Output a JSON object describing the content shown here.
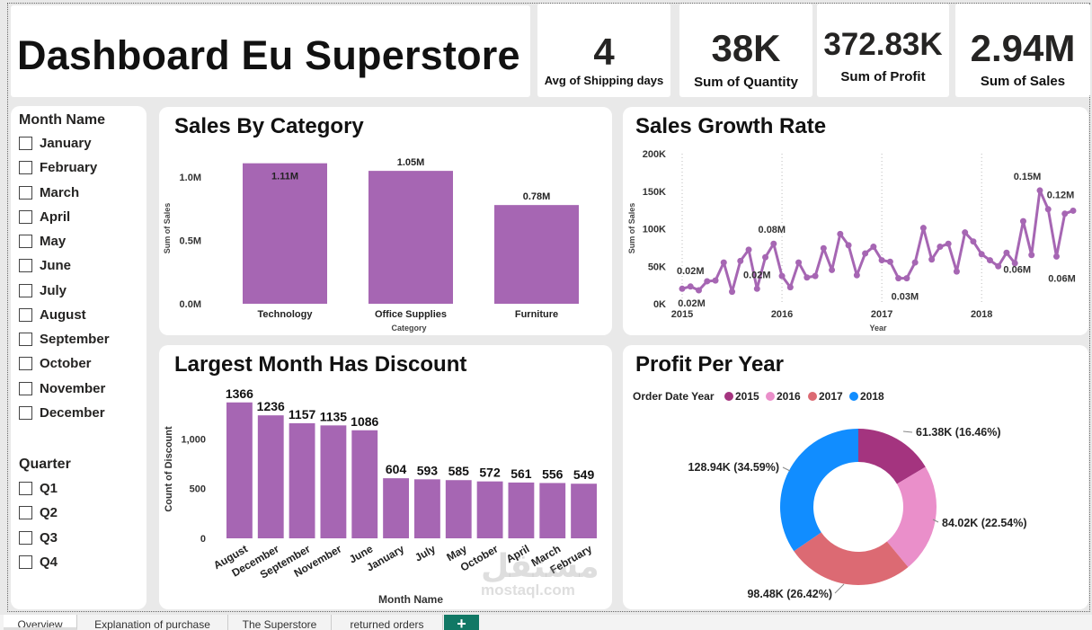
{
  "dashboard": {
    "title": "Dashboard Eu Superstore"
  },
  "kpis": [
    {
      "value": "4",
      "label": "Avg of Shipping days"
    },
    {
      "value": "38K",
      "label": "Sum of Quantity"
    },
    {
      "value": "372.83K",
      "label": "Sum of Profit"
    },
    {
      "value": "2.94M",
      "label": "Sum of Sales"
    }
  ],
  "slicers": {
    "month": {
      "header": "Month Name",
      "items": [
        "January",
        "February",
        "March",
        "April",
        "May",
        "June",
        "July",
        "August",
        "September",
        "October",
        "November",
        "December"
      ]
    },
    "quarter": {
      "header": "Quarter",
      "items": [
        "Q1",
        "Q2",
        "Q3",
        "Q4"
      ]
    }
  },
  "panels": {
    "sales_by_category": "Sales By Category",
    "sales_growth": "Sales Growth Rate",
    "discount_month": "Largest Month Has Discount",
    "profit_year": "Profit Per Year"
  },
  "chart_data": [
    {
      "type": "bar",
      "title": "Sales By Category",
      "xlabel": "Category",
      "ylabel": "Sum of Sales",
      "categories": [
        "Technology",
        "Office Supplies",
        "Furniture"
      ],
      "values": [
        1.11,
        1.05,
        0.78
      ],
      "value_labels": [
        "1.11M",
        "1.05M",
        "0.78M"
      ],
      "ylim": [
        0,
        1.2
      ],
      "yticks": [
        0,
        0.5,
        1.0
      ],
      "ytick_labels": [
        "0.0M",
        "0.5M",
        "1.0M"
      ],
      "color": "#a666b3"
    },
    {
      "type": "line",
      "title": "Sales Growth Rate",
      "xlabel": "Year",
      "ylabel": "Sum of Sales",
      "x_ticks": [
        "2015",
        "2016",
        "2017",
        "2018"
      ],
      "ylim": [
        0,
        200000
      ],
      "yticks": [
        0,
        50000,
        100000,
        150000,
        200000
      ],
      "ytick_labels": [
        "0K",
        "50K",
        "100K",
        "150K",
        "200K"
      ],
      "values": [
        20000,
        23000,
        18000,
        30000,
        31000,
        55000,
        16000,
        57000,
        72000,
        20000,
        62000,
        80000,
        37000,
        22000,
        55000,
        35000,
        37000,
        74000,
        45000,
        93000,
        78000,
        38000,
        67000,
        76000,
        58000,
        56000,
        34000,
        34000,
        55000,
        101000,
        59000,
        76000,
        80000,
        43000,
        95000,
        83000,
        66000,
        58000,
        50000,
        68000,
        54000,
        110000,
        65000,
        151000,
        126000,
        63000,
        120000,
        124000
      ],
      "annotations": [
        {
          "index": 1,
          "label": "0.02M"
        },
        {
          "index": 2,
          "label": "0.02M"
        },
        {
          "index": 11,
          "label": "0.08M"
        },
        {
          "index": 9,
          "label": "0.02M"
        },
        {
          "index": 27,
          "label": "0.03M"
        },
        {
          "index": 43,
          "label": "0.15M"
        },
        {
          "index": 42,
          "label": "0.06M"
        },
        {
          "index": 47,
          "label": "0.12M"
        },
        {
          "index": 45,
          "label": "0.06M"
        }
      ],
      "color": "#a666b3"
    },
    {
      "type": "bar",
      "title": "Largest Month Has Discount",
      "xlabel": "Month Name",
      "ylabel": "Count of Discount",
      "categories": [
        "August",
        "December",
        "September",
        "November",
        "June",
        "January",
        "July",
        "May",
        "October",
        "April",
        "March",
        "February"
      ],
      "values": [
        1366,
        1236,
        1157,
        1135,
        1086,
        604,
        593,
        585,
        572,
        561,
        556,
        549
      ],
      "ylim": [
        0,
        1400
      ],
      "yticks": [
        0,
        500,
        1000
      ],
      "ytick_labels": [
        "0",
        "500",
        "1,000"
      ],
      "color": "#a666b3"
    },
    {
      "type": "pie",
      "title": "Profit Per Year",
      "legend_title": "Order Date Year",
      "labels": [
        "2015",
        "2016",
        "2017",
        "2018"
      ],
      "values": [
        61.38,
        84.02,
        98.48,
        128.94
      ],
      "value_labels": [
        "61.38K (16.46%)",
        "84.02K (22.54%)",
        "98.48K (26.42%)",
        "128.94K (34.59%)"
      ],
      "colors": [
        "#a4347f",
        "#ea8fca",
        "#dc6a73",
        "#118dff"
      ],
      "legend_placement": "top-left"
    }
  ],
  "tabs": [
    "Overview",
    "Explanation of purchase",
    "The Superstore",
    "returned orders"
  ],
  "tab_add_label": "+",
  "watermark": {
    "line1": "مستقل",
    "line2": "mostaql.com"
  }
}
